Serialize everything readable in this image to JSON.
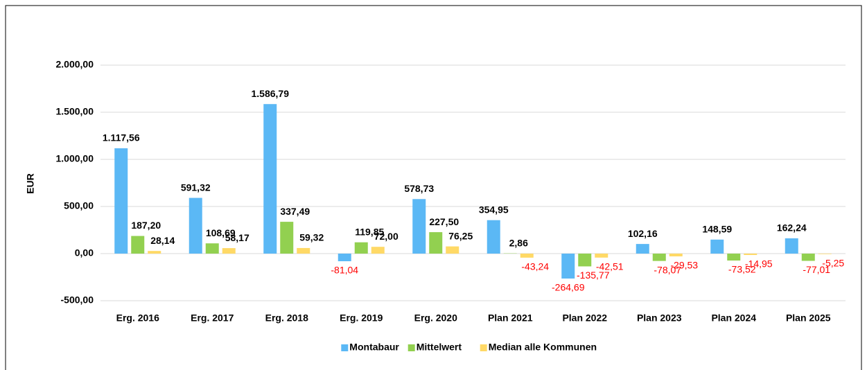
{
  "chart_data": {
    "type": "bar",
    "y_label": "EUR",
    "categories": [
      "Erg. 2016",
      "Erg. 2017",
      "Erg. 2018",
      "Erg. 2019",
      "Erg. 2020",
      "Plan 2021",
      "Plan 2022",
      "Plan 2023",
      "Plan 2024",
      "Plan 2025"
    ],
    "series": [
      {
        "name": "Montabaur",
        "color": "#5bb8f5",
        "values": [
          1117.56,
          591.32,
          1586.79,
          -81.04,
          578.73,
          354.95,
          -264.69,
          102.16,
          148.59,
          162.24
        ],
        "value_labels": [
          "1.117,56",
          "591,32",
          "1.586,79",
          "-81,04",
          "578,73",
          "354,95",
          "-264,69",
          "102,16",
          "148,59",
          "162,24"
        ]
      },
      {
        "name": "Mittelwert",
        "color": "#92d050",
        "values": [
          187.2,
          108.69,
          337.49,
          119.85,
          227.5,
          2.86,
          -135.77,
          -78.07,
          -73.52,
          -77.01
        ],
        "value_labels": [
          "187,20",
          "108,69",
          "337,49",
          "119,85",
          "227,50",
          "2,86",
          "-135,77",
          "-78,07",
          "-73,52",
          "-77,01"
        ]
      },
      {
        "name": "Median alle Kommunen",
        "color": "#ffd966",
        "values": [
          28.14,
          58.17,
          59.32,
          72.0,
          76.25,
          -43.24,
          -42.51,
          -29.53,
          -14.95,
          -5.25
        ],
        "value_labels": [
          "28,14",
          "58,17",
          "59,32",
          "72,00",
          "76,25",
          "-43,24",
          "-42,51",
          "-29,53",
          "-14,95",
          "-5,25"
        ]
      }
    ],
    "ylim": [
      -500,
      2000
    ],
    "yticks": [
      {
        "value": -500,
        "label": "-500,00"
      },
      {
        "value": 0,
        "label": "0,00"
      },
      {
        "value": 500,
        "label": "500,00"
      },
      {
        "value": 1000,
        "label": "1.000,00"
      },
      {
        "value": 1500,
        "label": "1.500,00"
      },
      {
        "value": 2000,
        "label": "2.000,00"
      }
    ],
    "grid": true,
    "negative_label_color": "#ff0000",
    "legend": "bottom"
  }
}
